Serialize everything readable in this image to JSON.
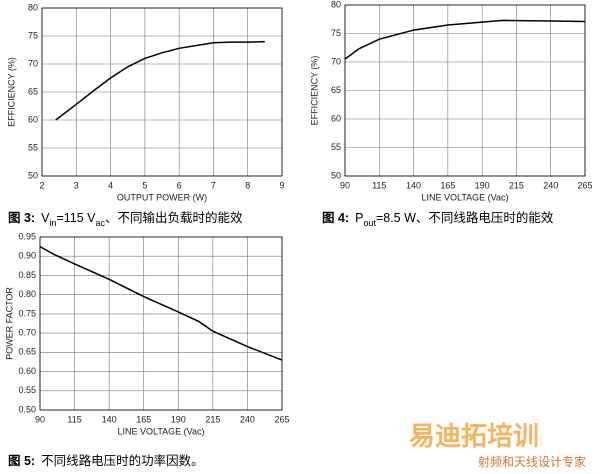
{
  "chart_data": [
    {
      "type": "line",
      "x_label": "OUTPUT POWER (W)",
      "y_label": "EFFICIENCY (%)",
      "xlim": [
        2,
        9
      ],
      "ylim": [
        50,
        80
      ],
      "xticks": [
        2,
        3,
        4,
        5,
        6,
        7,
        8,
        9
      ],
      "yticks": [
        50,
        55,
        60,
        65,
        70,
        75,
        80
      ],
      "grid": true,
      "color": "#000000",
      "x": [
        2.4,
        3,
        3.5,
        4,
        4.5,
        5,
        5.5,
        6,
        6.5,
        7,
        7.5,
        8,
        8.5
      ],
      "values": [
        60,
        62.8,
        65.2,
        67.5,
        69.5,
        71,
        72,
        72.8,
        73.3,
        73.8,
        73.9,
        73.9,
        74
      ],
      "caption": {
        "label": "图 3:",
        "parts": [
          "V",
          "in",
          "=115 V",
          "ac",
          "、不同输出负载时的能效"
        ]
      }
    },
    {
      "type": "line",
      "x_label": "LINE VOLTAGE (Vac)",
      "y_label": "EFFICIENCY (%)",
      "xlim": [
        90,
        265
      ],
      "ylim": [
        50,
        80
      ],
      "xticks": [
        90,
        115,
        140,
        165,
        190,
        215,
        240,
        265
      ],
      "yticks": [
        50,
        55,
        60,
        65,
        70,
        75,
        80
      ],
      "grid": true,
      "color": "#000000",
      "x": [
        90,
        100,
        115,
        140,
        165,
        190,
        205,
        240,
        265
      ],
      "values": [
        70.5,
        72.3,
        74,
        75.6,
        76.5,
        77,
        77.3,
        77.2,
        77.1
      ],
      "caption": {
        "label": "图 4:",
        "parts": [
          "P",
          "out",
          "=8.5 W、不同线路电压时的能效"
        ]
      }
    },
    {
      "type": "line",
      "x_label": "LINE VOLTAGE (Vac)",
      "y_label": "POWER FACTOR",
      "xlim": [
        90,
        265
      ],
      "ylim": [
        0.5,
        0.95
      ],
      "xticks": [
        90,
        115,
        140,
        165,
        190,
        215,
        240,
        265
      ],
      "yticks": [
        {
          "value": 0.5,
          "label": "0.50"
        },
        0.55,
        {
          "value": 0.6,
          "label": "0.60"
        },
        0.65,
        {
          "value": 0.7,
          "label": "0.70"
        },
        0.75,
        {
          "value": 0.8,
          "label": "0.80"
        },
        0.85,
        {
          "value": 0.9,
          "label": "0.90"
        },
        0.95
      ],
      "grid": true,
      "color": "#000000",
      "x": [
        90,
        100,
        115,
        140,
        165,
        190,
        205,
        215,
        240,
        265
      ],
      "values": [
        0.925,
        0.905,
        0.88,
        0.84,
        0.795,
        0.755,
        0.73,
        0.705,
        0.665,
        0.63
      ],
      "caption": {
        "label": "图 5:",
        "parts": [
          "不同线路电压时的功率因数。"
        ]
      }
    }
  ],
  "watermark": {
    "title": "易迪拓培训",
    "subtitle": "射频和天线设计专家"
  }
}
